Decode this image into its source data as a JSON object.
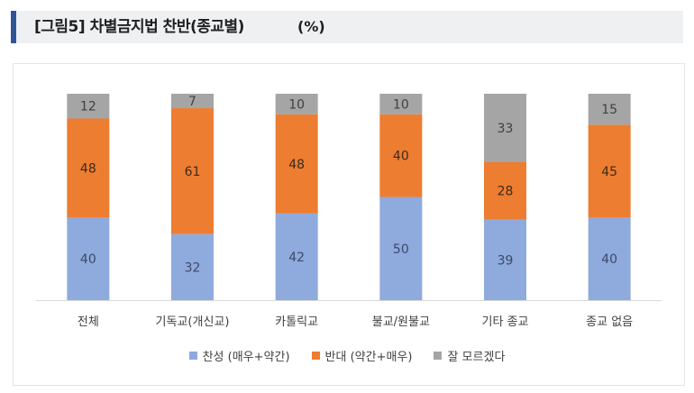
{
  "header": {
    "title": "[그림5] 차별금지법 찬반(종교별)",
    "unit": "(%)"
  },
  "chart_data": {
    "type": "bar",
    "stacked": true,
    "categories": [
      "전체",
      "기독교(개신교)",
      "카톨릭교",
      "불교/원불교",
      "기타 종교",
      "종교 없음"
    ],
    "series": [
      {
        "name": "찬성 (매우+약간)",
        "color": "#8faadc",
        "values": [
          40,
          32,
          42,
          50,
          39,
          40
        ]
      },
      {
        "name": "반대 (약간+매우)",
        "color": "#ed7d31",
        "values": [
          48,
          61,
          48,
          40,
          28,
          45
        ]
      },
      {
        "name": "잘 모르겠다",
        "color": "#a5a5a5",
        "values": [
          12,
          7,
          10,
          10,
          33,
          15
        ]
      }
    ],
    "ylim": [
      0,
      100
    ],
    "grid": false,
    "legend_position": "bottom"
  }
}
